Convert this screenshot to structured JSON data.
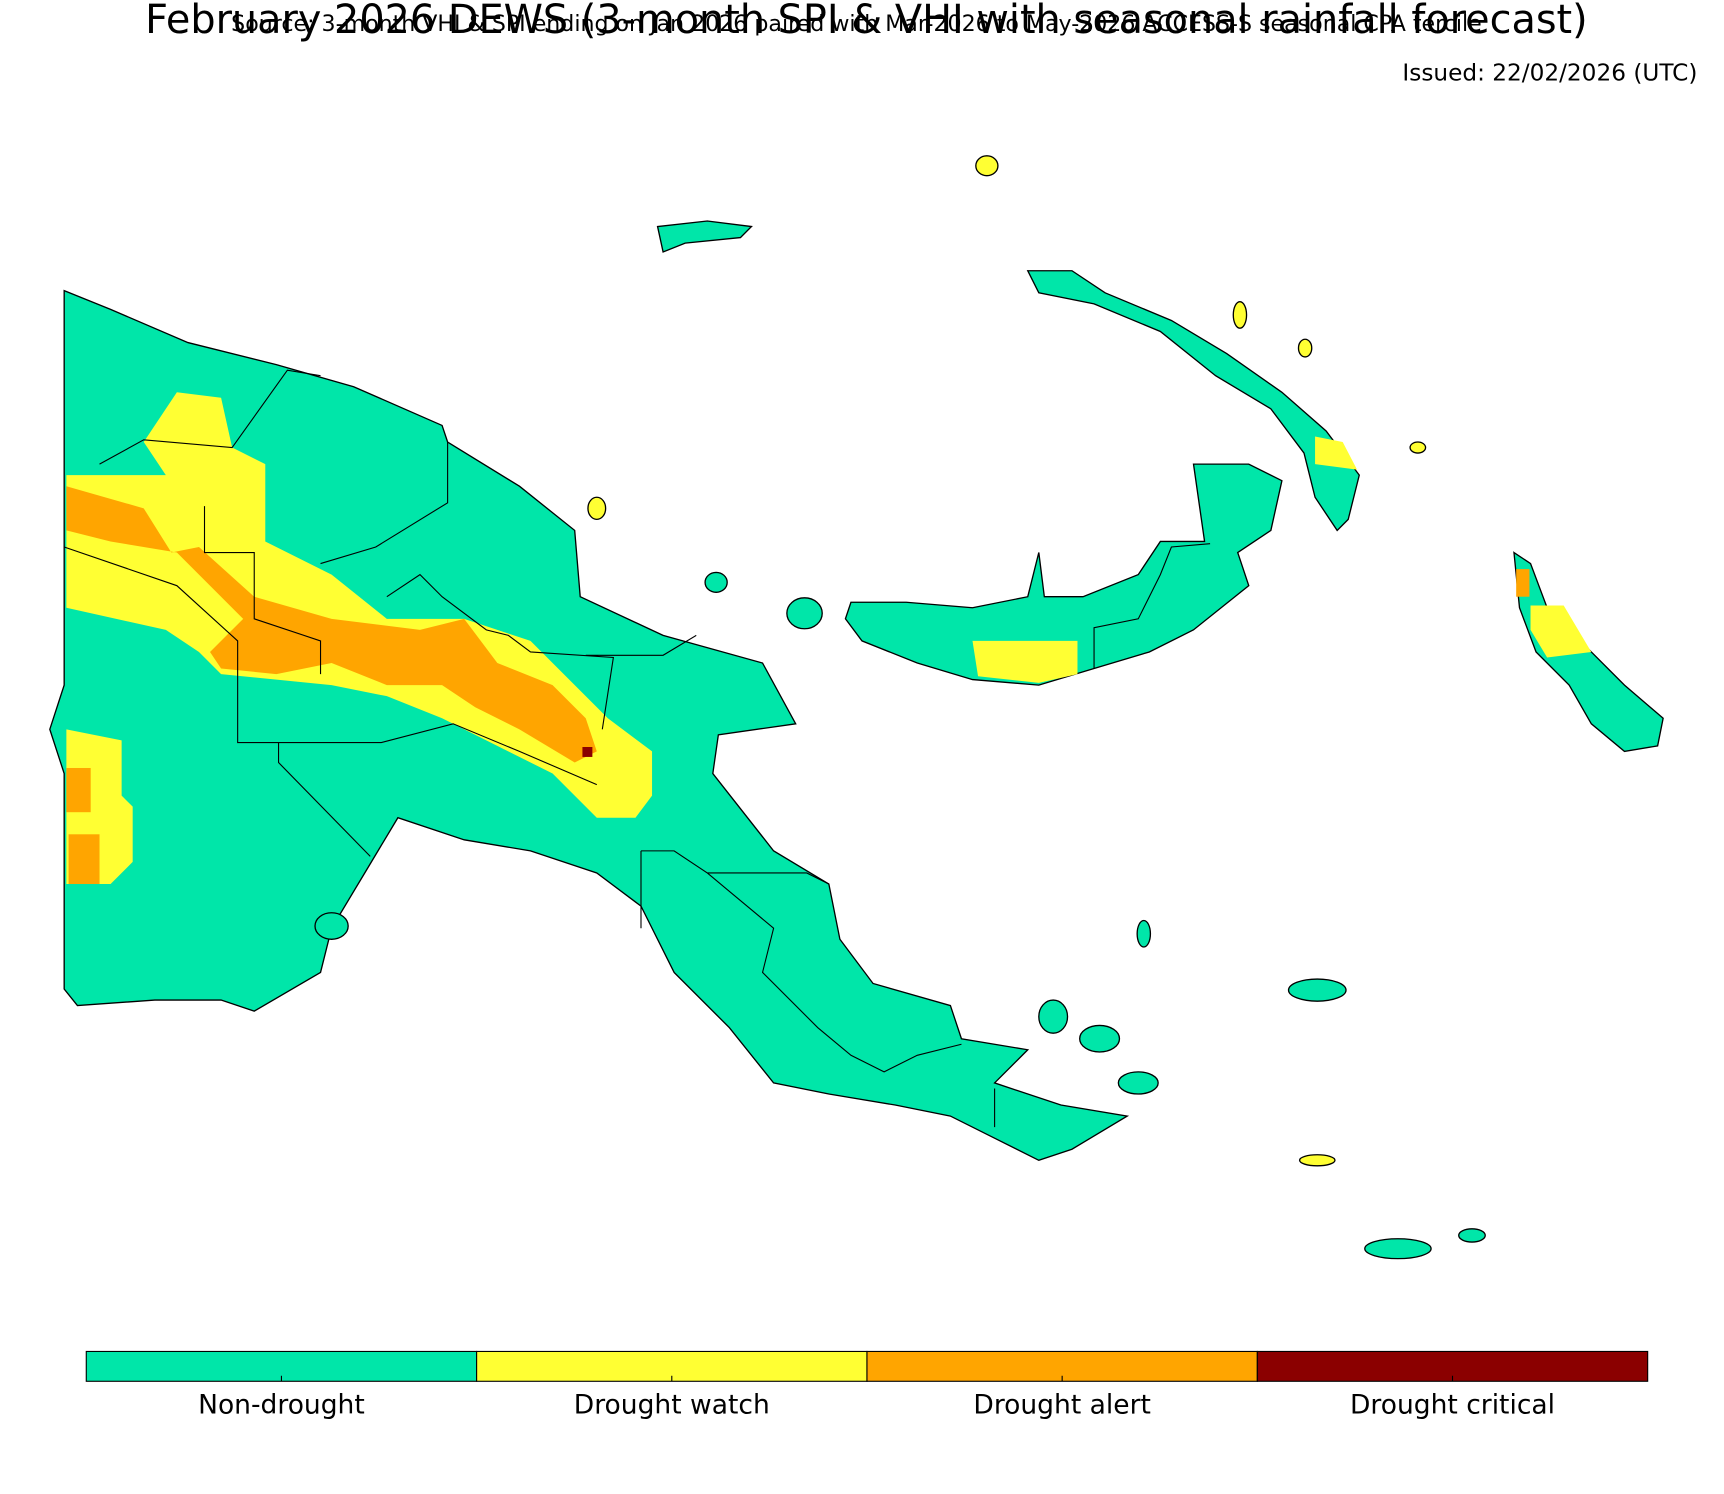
{
  "header": {
    "title": "February 2026 DEWS (3-month SPI & VHI with seasonal rainfall forecast)",
    "source": "Source: 3-month VHI & SPI ending on Jan 2026 paired with Mar-2026 to May-2026 ACCESS-S seasonal CPA tercile",
    "issued": "Issued: 22/02/2026 (UTC)"
  },
  "legend": {
    "items": [
      {
        "label": "Non-drought",
        "color": "#00e6a9"
      },
      {
        "label": "Drought watch",
        "color": "#ffff33"
      },
      {
        "label": "Drought alert",
        "color": "#ffa500"
      },
      {
        "label": "Drought critical",
        "color": "#8b0000"
      }
    ]
  }
}
